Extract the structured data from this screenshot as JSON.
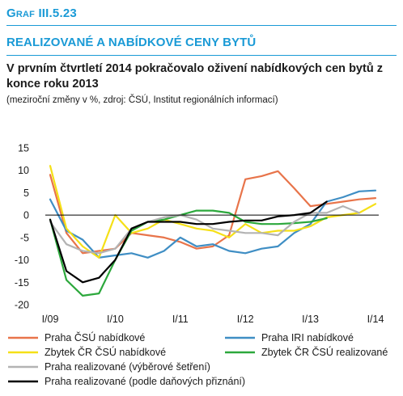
{
  "header": {
    "graf_label": "Graf III.5.23",
    "section_title": "REALIZOVANÉ A NABÍDKOVÉ CENY BYTŮ",
    "headline": "V prvním čtvrtletí 2014 pokračovalo oživení nabídkových cen bytů z konce roku 2013",
    "subtitle": "(meziroční změny v %, zdroj: ČSÚ, Institut regionálních informací)"
  },
  "chart_data": {
    "type": "line",
    "x_unit": "quarter index (0 = I/09)",
    "x_ticks": [
      {
        "x": 0,
        "label": "I/09"
      },
      {
        "x": 4,
        "label": "I/10"
      },
      {
        "x": 8,
        "label": "I/11"
      },
      {
        "x": 12,
        "label": "I/12"
      },
      {
        "x": 16,
        "label": "I/13"
      },
      {
        "x": 20,
        "label": "I/14"
      }
    ],
    "xlim": [
      0,
      20
    ],
    "ylim": [
      -20,
      15
    ],
    "y_ticks": [
      15,
      10,
      5,
      0,
      -5,
      -10,
      -15,
      -20
    ],
    "grid": false,
    "legend": "bottom",
    "series": [
      {
        "name": "Praha ČSÚ nabídkové",
        "color": "#e8744a",
        "x": [
          0,
          1,
          2,
          3,
          4,
          5,
          6,
          7,
          8,
          9,
          10,
          11,
          12,
          13,
          14,
          15,
          16,
          17,
          18,
          19,
          20
        ],
        "y": [
          9,
          -4,
          -8.5,
          -8,
          -7.5,
          -4,
          -4.5,
          -5,
          -6,
          -7.5,
          -7,
          -4.5,
          8,
          8.7,
          9.8,
          6,
          2,
          2.5,
          3,
          3.5,
          3.8
        ]
      },
      {
        "name": "Praha IRI nabídkové",
        "color": "#3f8ec4",
        "x": [
          0,
          1,
          2,
          3,
          4,
          5,
          6,
          7,
          8,
          9,
          10,
          11,
          12,
          13,
          14,
          15,
          16,
          17,
          18,
          19,
          20
        ],
        "y": [
          3.5,
          -3.5,
          -5.5,
          -9.5,
          -9,
          -8.5,
          -9.5,
          -8,
          -5,
          -7,
          -6.5,
          -8,
          -8.5,
          -7.5,
          -7,
          -4,
          -2,
          3,
          4,
          5.3,
          5.5
        ]
      },
      {
        "name": "Zbytek ČR ČSÚ nabídkové",
        "color": "#f5e017",
        "x": [
          0,
          1,
          2,
          3,
          4,
          5,
          6,
          7,
          8,
          9,
          10,
          11,
          12,
          13,
          14,
          15,
          16,
          17,
          18,
          19,
          20
        ],
        "y": [
          11,
          -3,
          -7,
          -9.5,
          0,
          -4,
          -3,
          -1,
          -2,
          -3,
          -3.5,
          -5,
          -2,
          -4,
          -3.5,
          -3.5,
          -2.5,
          -0.5,
          0,
          0.5,
          2.5
        ]
      },
      {
        "name": "Zbytek ČR ČSÚ realizované",
        "color": "#2ca83c",
        "x": [
          0,
          1,
          2,
          3,
          4,
          5,
          6,
          7,
          8,
          9,
          10,
          11,
          12,
          13,
          14,
          15,
          16,
          17
        ],
        "y": [
          -1,
          -14.5,
          -18,
          -17.5,
          -10,
          -3.5,
          -1.5,
          -1,
          0,
          1,
          1,
          0.5,
          -1.5,
          -2,
          -2,
          -1.8,
          -1.5,
          -0.7
        ]
      },
      {
        "name": "Praha realizované (výběrové šetření)",
        "color": "#b3b3b3",
        "x": [
          0,
          1,
          2,
          3,
          4,
          5,
          6,
          7,
          8,
          9,
          10,
          11,
          12,
          13,
          14,
          15,
          16,
          17,
          18,
          19,
          20
        ],
        "y": [
          -1.5,
          -6.5,
          -8,
          -8.5,
          -7.5,
          -3,
          -1.5,
          -0.5,
          0,
          -1,
          -3,
          -3.5,
          -4,
          -4,
          -4.5,
          -1.5,
          0.5,
          0.5,
          2,
          0.5,
          null
        ]
      },
      {
        "name": "Praha realizované (podle daňových přiznání)",
        "color": "#000000",
        "x": [
          0,
          1,
          2,
          3,
          4,
          5,
          6,
          7,
          8,
          9,
          10,
          11,
          12,
          13,
          14,
          15,
          16,
          17
        ],
        "y": [
          -1,
          -12.5,
          -15,
          -14,
          -10,
          -3,
          -1.5,
          -1.5,
          -1.5,
          -2,
          -2,
          -1.5,
          -1.2,
          -1.2,
          -0.3,
          0,
          0.5,
          3
        ]
      }
    ]
  }
}
